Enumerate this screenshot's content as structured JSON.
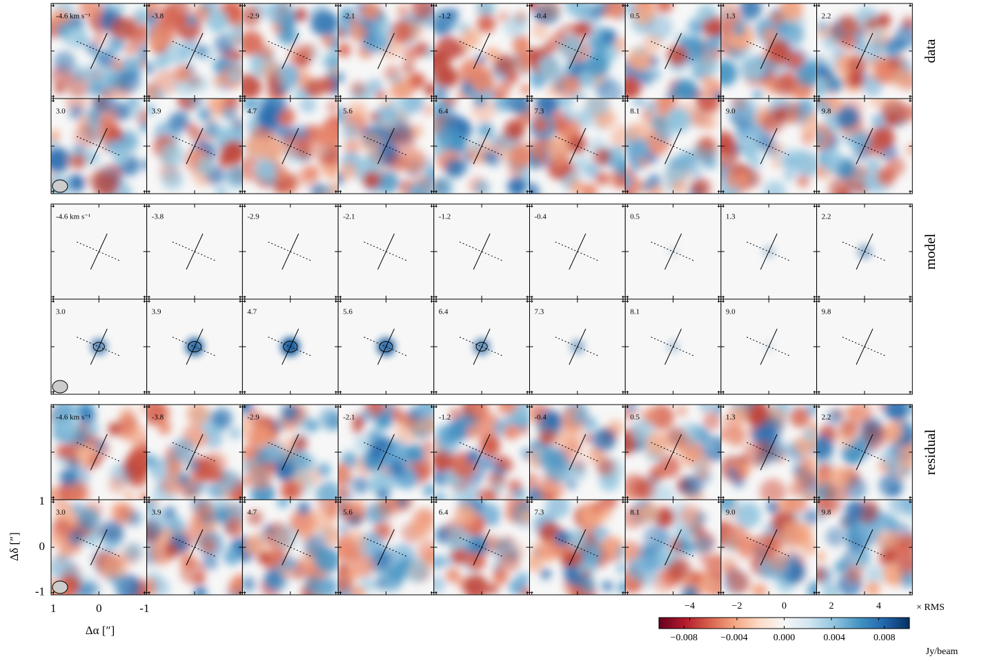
{
  "panels": {
    "rows": [
      "data",
      "model",
      "residual"
    ],
    "velocities": [
      "-4.6 km s⁻¹",
      "-3.8",
      "-2.9",
      "-2.1",
      "-1.2",
      "-0.4",
      "0.5",
      "1.3",
      "2.2",
      "3.0",
      "3.9",
      "4.7",
      "5.6",
      "6.4",
      "7.3",
      "8.1",
      "9.0",
      "9.8"
    ]
  },
  "axes": {
    "x_label": "Δα [″]",
    "y_label": "Δδ [″]",
    "xlim": [
      1.05,
      -1.05
    ],
    "ylim": [
      -1.05,
      1.05
    ],
    "xticks": [
      1,
      0,
      -1
    ],
    "yticks": [
      1,
      0,
      -1
    ]
  },
  "colorbar": {
    "rms_lim": [
      -5.3,
      5.3
    ],
    "rms_ticks": [
      {
        "value": -4,
        "label": "−4"
      },
      {
        "value": -2,
        "label": "−2"
      },
      0,
      2,
      4
    ],
    "rms_label": "× RMS",
    "jy_lim": [
      -0.01,
      0.01
    ],
    "jy_ticks": [
      {
        "value": -0.008,
        "label": "−0.008"
      },
      {
        "value": -0.004,
        "label": "−0.004"
      },
      {
        "value": 0,
        "label": "0.000"
      },
      {
        "value": 0.004,
        "label": "0.004"
      },
      {
        "value": 0.008,
        "label": "0.008"
      }
    ],
    "jy_label": "Jy/beam"
  }
}
